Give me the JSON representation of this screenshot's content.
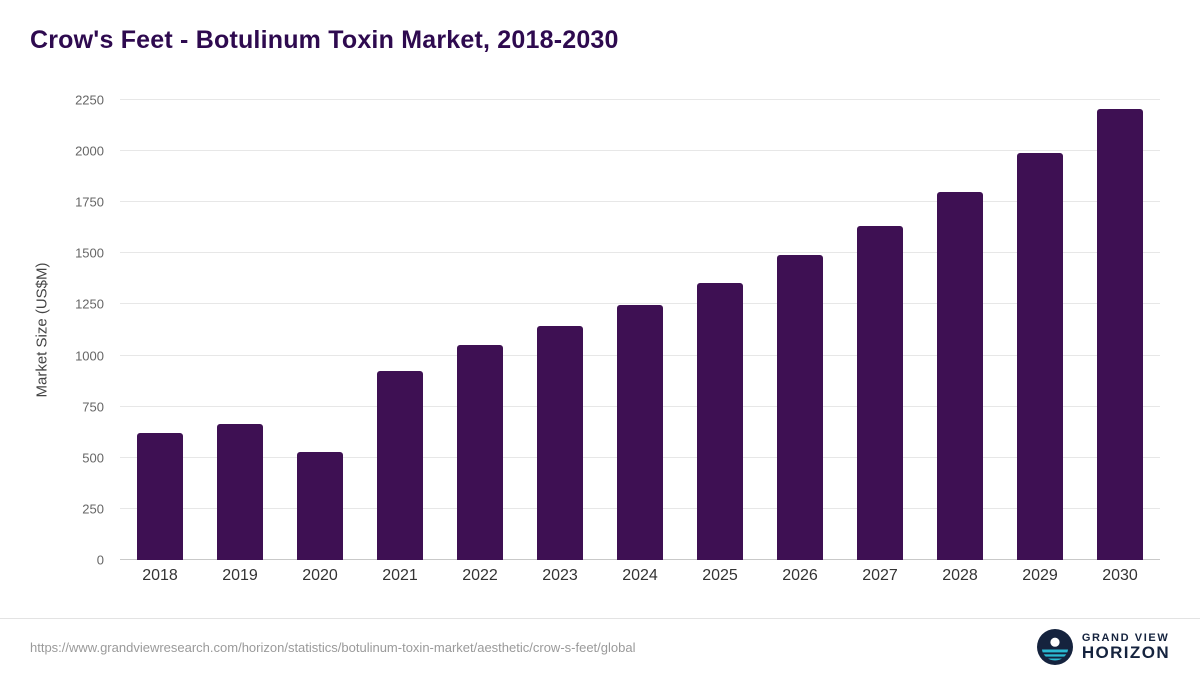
{
  "title": "Crow's Feet - Botulinum Toxin Market, 2018-2030",
  "footer": {
    "url": "https://www.grandviewresearch.com/horizon/statistics/botulinum-toxin-market/aesthetic/crow-s-feet/global",
    "logo_line1": "GRAND VIEW",
    "logo_line2": "HORIZON"
  },
  "colors": {
    "bar": "#3e1053",
    "title": "#2e0a4f",
    "grid": "#e7e7e7",
    "axis_text": "#666666",
    "logo_navy": "#15233e",
    "logo_teal": "#2ab9d1"
  },
  "chart_data": {
    "type": "bar",
    "title": "Crow's Feet - Botulinum Toxin Market, 2018-2030",
    "categories": [
      "2018",
      "2019",
      "2020",
      "2021",
      "2022",
      "2023",
      "2024",
      "2025",
      "2026",
      "2027",
      "2028",
      "2029",
      "2030"
    ],
    "values": [
      620,
      665,
      530,
      925,
      1050,
      1145,
      1245,
      1355,
      1490,
      1635,
      1800,
      1990,
      2205
    ],
    "xlabel": "",
    "ylabel": "Market Size (US$M)",
    "ylim": [
      0,
      2250
    ],
    "ytick_step": 250,
    "grid": true,
    "legend": false
  }
}
